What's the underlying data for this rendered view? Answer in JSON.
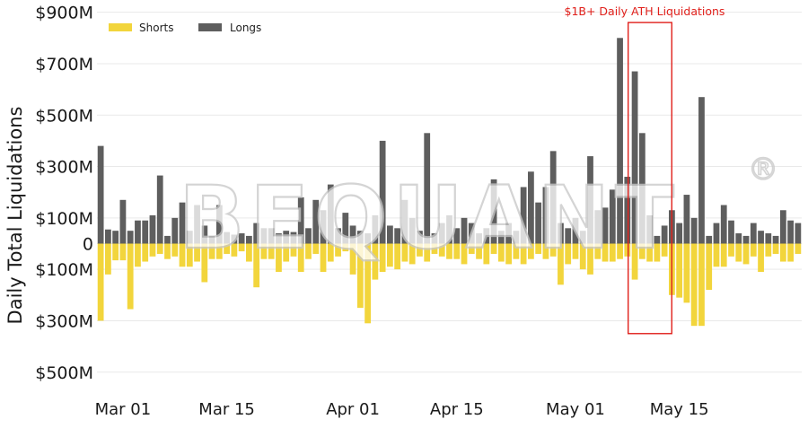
{
  "chart_data": {
    "type": "bar",
    "ylabel": "Daily Total Liquidations",
    "ylim": [
      -520,
      900
    ],
    "y_ticks": [
      {
        "value": 900,
        "label": "$900M"
      },
      {
        "value": 700,
        "label": "$700M"
      },
      {
        "value": 500,
        "label": "$500M"
      },
      {
        "value": 300,
        "label": "$300M"
      },
      {
        "value": 100,
        "label": "$100M"
      },
      {
        "value": 0,
        "label": "0"
      },
      {
        "value": -100,
        "label": "$100M"
      },
      {
        "value": -300,
        "label": "$300M"
      },
      {
        "value": -500,
        "label": "$500M"
      }
    ],
    "x_ticks": [
      {
        "index": 3,
        "label": "Mar 01"
      },
      {
        "index": 17,
        "label": "Mar 15"
      },
      {
        "index": 34,
        "label": "Apr 01"
      },
      {
        "index": 48,
        "label": "Apr 15"
      },
      {
        "index": 64,
        "label": "May 01"
      },
      {
        "index": 78,
        "label": "May 15"
      }
    ],
    "grid": true,
    "legend_position": "top-left",
    "series": [
      {
        "name": "Shorts",
        "color": "#f2d53c",
        "values": [
          -300,
          -120,
          -65,
          -65,
          -255,
          -90,
          -70,
          -50,
          -40,
          -60,
          -50,
          -90,
          -90,
          -70,
          -150,
          -60,
          -60,
          -40,
          -50,
          -30,
          -70,
          -170,
          -60,
          -60,
          -110,
          -70,
          -50,
          -110,
          -60,
          -40,
          -110,
          -70,
          -50,
          -30,
          -120,
          -250,
          -310,
          -140,
          -110,
          -90,
          -100,
          -70,
          -80,
          -50,
          -70,
          -40,
          -50,
          -60,
          -60,
          -80,
          -40,
          -60,
          -80,
          -40,
          -70,
          -80,
          -60,
          -80,
          -60,
          -40,
          -60,
          -50,
          -160,
          -80,
          -60,
          -100,
          -120,
          -60,
          -70,
          -70,
          -60,
          -50,
          -140,
          -60,
          -70,
          -70,
          -50,
          -200,
          -210,
          -230,
          -320,
          -320,
          -180,
          -90,
          -90,
          -50,
          -70,
          -80,
          -50,
          -110,
          -50,
          -40,
          -70,
          -70,
          -40
        ],
        "dates_note": ""
      },
      {
        "name": "Longs",
        "color": "#5e5e5e",
        "values": [
          380,
          55,
          50,
          170,
          50,
          90,
          90,
          110,
          265,
          30,
          100,
          160,
          50,
          150,
          70,
          30,
          150,
          45,
          35,
          40,
          30,
          80,
          60,
          60,
          40,
          50,
          45,
          180,
          60,
          170,
          130,
          230,
          60,
          120,
          70,
          50,
          40,
          110,
          400,
          70,
          60,
          170,
          100,
          50,
          430,
          40,
          80,
          110,
          60,
          100,
          80,
          40,
          60,
          250,
          50,
          80,
          50,
          220,
          280,
          160,
          220,
          360,
          80,
          60,
          100,
          50,
          340,
          130,
          140,
          210,
          800,
          260,
          670,
          430,
          110,
          30,
          70,
          130,
          80,
          190,
          100,
          570,
          30,
          80,
          150,
          90,
          40,
          30,
          80,
          50,
          40,
          30,
          130,
          90,
          80
        ]
      }
    ],
    "annotation": {
      "text": "$1B+ Daily ATH Liquidations",
      "start_index": 72,
      "end_index": 76,
      "y_top": 860,
      "y_bottom": -350,
      "color": "#e0201b"
    },
    "watermark": "BEQUANT",
    "watermark_mark": "®"
  }
}
